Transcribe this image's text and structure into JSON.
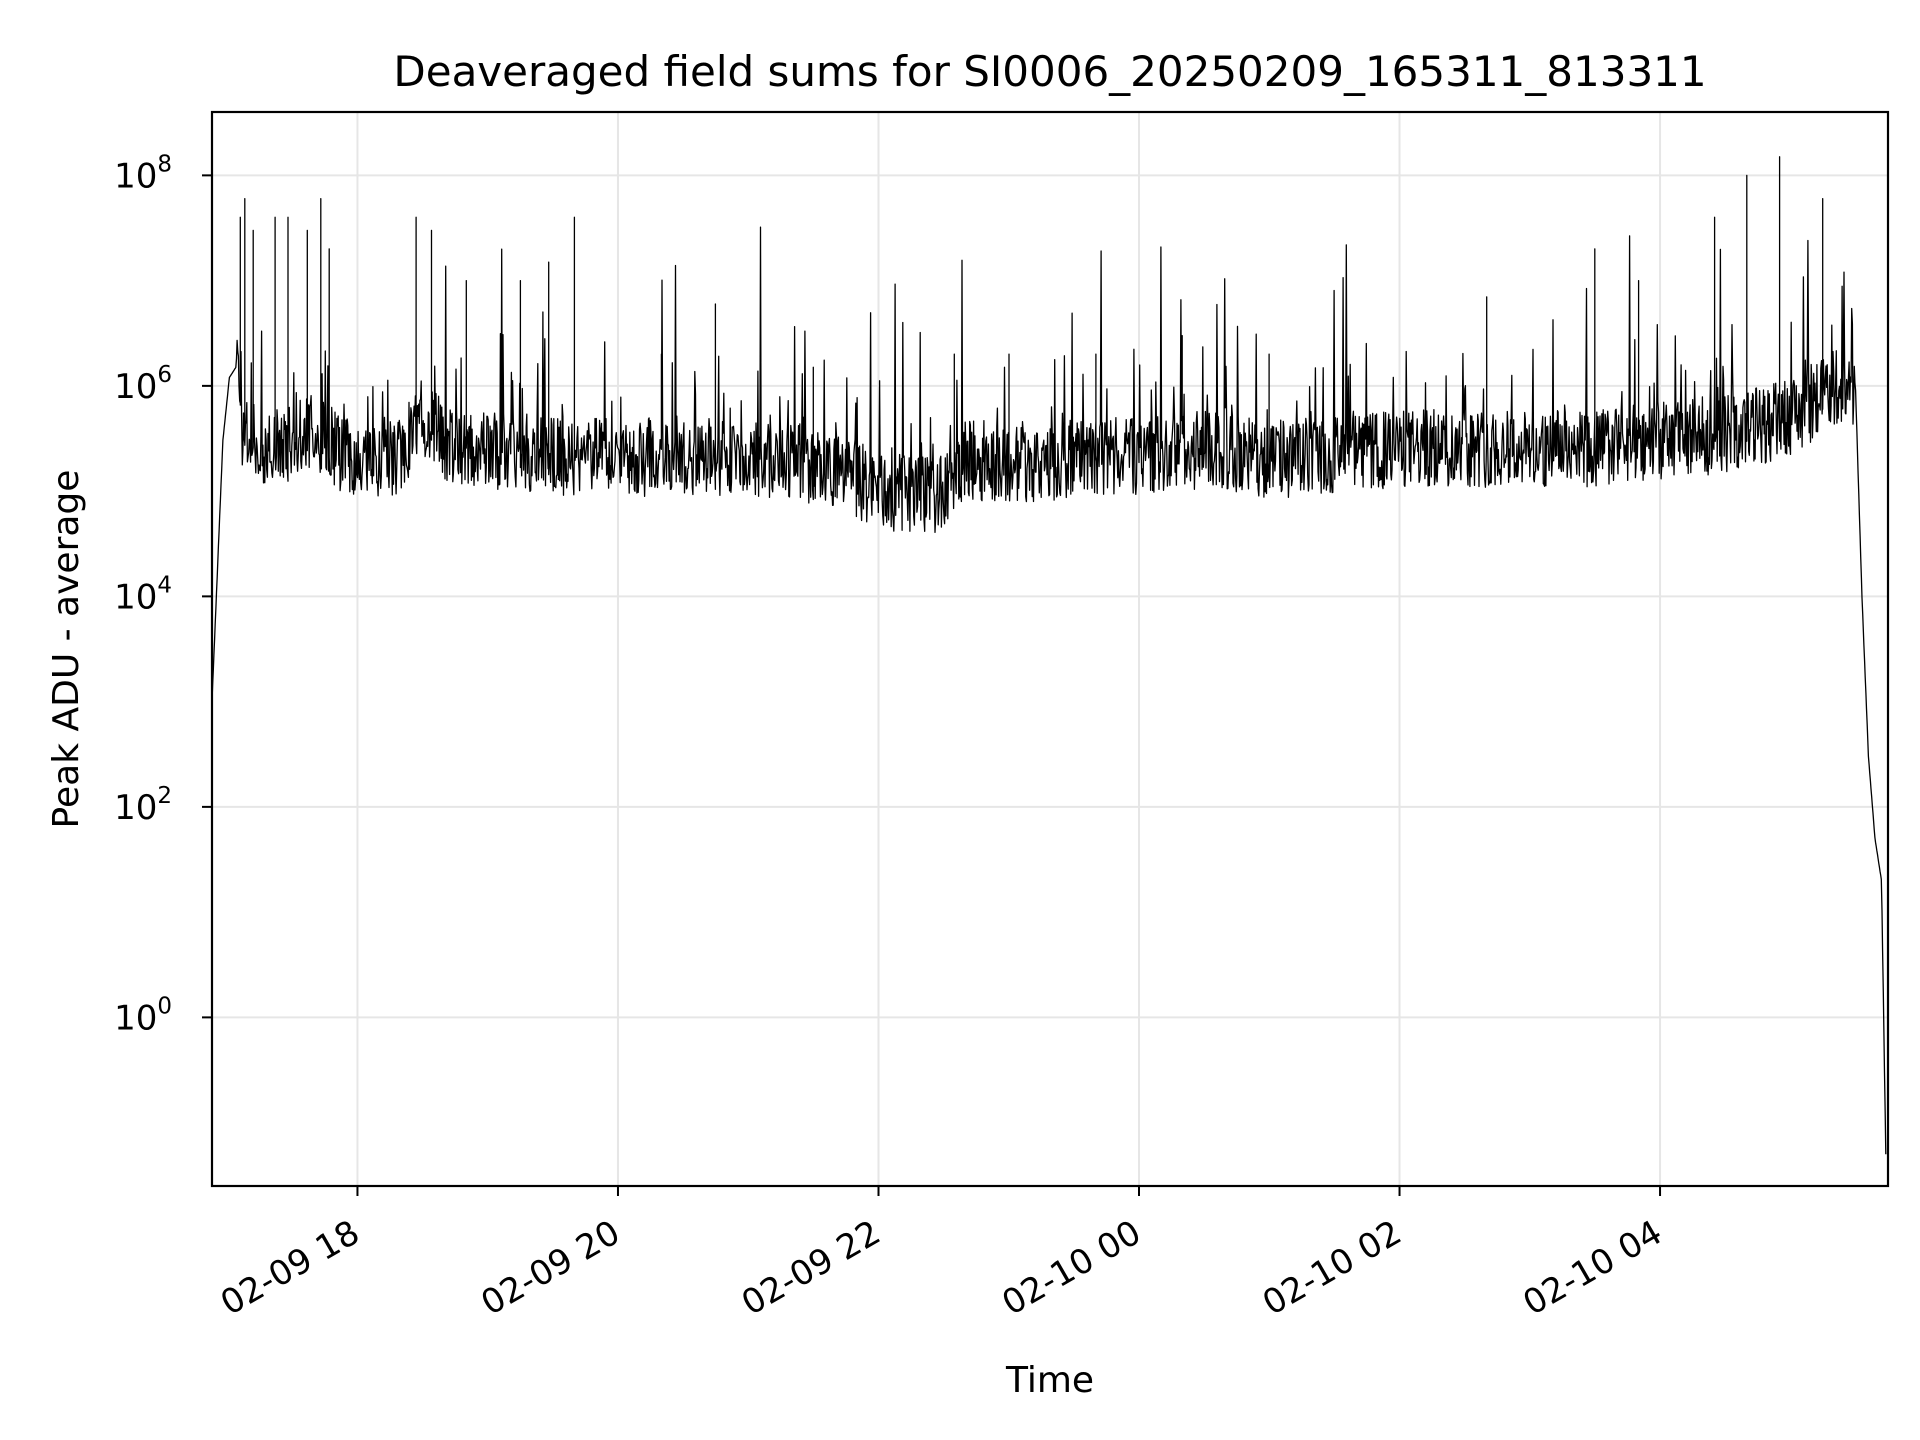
{
  "chart_data": {
    "type": "line",
    "title": "Deaveraged field sums for SI0006_20250209_165311_813311",
    "xlabel": "Time",
    "ylabel": "Peak ADU - average",
    "yscale": "log",
    "xlim": [
      "2025-02-09 16:53",
      "2025-02-10 05:45"
    ],
    "ylim": [
      0.025,
      400000000
    ],
    "grid": true,
    "line_color": "#000000",
    "grid_color": "#e6e6e6",
    "x_ticks": [
      "02-09 18",
      "02-09 20",
      "02-09 22",
      "02-10 00",
      "02-10 02",
      "02-10 04"
    ],
    "x_tick_values": [
      "2025-02-09 18:00",
      "2025-02-09 20:00",
      "2025-02-09 22:00",
      "2025-02-10 00:00",
      "2025-02-10 02:00",
      "2025-02-10 04:00"
    ],
    "y_ticks": [
      {
        "base": "10",
        "exp": "0",
        "value": 1
      },
      {
        "base": "10",
        "exp": "2",
        "value": 100
      },
      {
        "base": "10",
        "exp": "4",
        "value": 10000
      },
      {
        "base": "10",
        "exp": "6",
        "value": 1000000
      },
      {
        "base": "10",
        "exp": "8",
        "value": 100000000
      }
    ],
    "series": [
      {
        "x": [
          "2025-02-09 16:53",
          "2025-02-09 16:55",
          "2025-02-09 16:58",
          "2025-02-09 17:01",
          "2025-02-09 17:04",
          "2025-02-09 17:07",
          "2025-02-09 17:10",
          "2025-02-09 17:20",
          "2025-02-09 17:30",
          "2025-02-09 17:40",
          "2025-02-09 17:50",
          "2025-02-09 18:00",
          "2025-02-09 18:20",
          "2025-02-09 18:30",
          "2025-02-09 18:40",
          "2025-02-09 19:00",
          "2025-02-09 19:30",
          "2025-02-09 20:00",
          "2025-02-09 20:30",
          "2025-02-09 21:00",
          "2025-02-09 21:30",
          "2025-02-09 22:00",
          "2025-02-09 22:30",
          "2025-02-09 22:40",
          "2025-02-09 23:00",
          "2025-02-09 23:30",
          "2025-02-10 00:00",
          "2025-02-10 00:30",
          "2025-02-10 01:00",
          "2025-02-10 01:30",
          "2025-02-10 02:00",
          "2025-02-10 02:30",
          "2025-02-10 03:00",
          "2025-02-10 03:30",
          "2025-02-10 04:00",
          "2025-02-10 04:30",
          "2025-02-10 05:00",
          "2025-02-10 05:20",
          "2025-02-10 05:30",
          "2025-02-10 05:33",
          "2025-02-10 05:36",
          "2025-02-10 05:39",
          "2025-02-10 05:42",
          "2025-02-10 05:44"
        ],
        "y": [
          1000,
          10000,
          300000,
          1200000,
          1500000,
          400000,
          300000,
          250000,
          300000,
          350000,
          250000,
          200000,
          220000,
          500000,
          300000,
          250000,
          220000,
          200000,
          220000,
          200000,
          180000,
          100000,
          90000,
          200000,
          180000,
          200000,
          220000,
          250000,
          200000,
          220000,
          250000,
          260000,
          250000,
          260000,
          300000,
          350000,
          500000,
          1000000,
          1000000,
          10000,
          300,
          50,
          20,
          0.05
        ]
      }
    ],
    "spikes": [
      {
        "x": "2025-02-09 17:06",
        "y": 40000000
      },
      {
        "x": "2025-02-09 17:08",
        "y": 60000000
      },
      {
        "x": "2025-02-09 17:12",
        "y": 30000000
      },
      {
        "x": "2025-02-09 17:22",
        "y": 40000000
      },
      {
        "x": "2025-02-09 17:28",
        "y": 40000000
      },
      {
        "x": "2025-02-09 17:37",
        "y": 30000000
      },
      {
        "x": "2025-02-09 17:43",
        "y": 60000000
      },
      {
        "x": "2025-02-09 17:47",
        "y": 20000000
      },
      {
        "x": "2025-02-09 18:27",
        "y": 40000000
      },
      {
        "x": "2025-02-09 18:34",
        "y": 30000000
      },
      {
        "x": "2025-02-09 18:50",
        "y": 10000000
      },
      {
        "x": "2025-02-09 19:15",
        "y": 10000000
      },
      {
        "x": "2025-02-09 19:28",
        "y": 15000000
      },
      {
        "x": "2025-02-09 19:40",
        "y": 40000000
      },
      {
        "x": "2025-02-09 20:20",
        "y": 2000000
      },
      {
        "x": "2025-02-09 20:45",
        "y": 6000000
      },
      {
        "x": "2025-02-09 21:30",
        "y": 1500000
      },
      {
        "x": "2025-02-09 22:35",
        "y": 2000000
      },
      {
        "x": "2025-02-09 23:00",
        "y": 2000000
      },
      {
        "x": "2025-02-09 23:40",
        "y": 2000000
      },
      {
        "x": "2025-02-10 00:20",
        "y": 3000000
      },
      {
        "x": "2025-02-10 01:00",
        "y": 2000000
      },
      {
        "x": "2025-02-10 02:40",
        "y": 7000000
      },
      {
        "x": "2025-02-10 03:30",
        "y": 20000000
      },
      {
        "x": "2025-02-10 03:50",
        "y": 10000000
      },
      {
        "x": "2025-02-10 04:25",
        "y": 40000000
      },
      {
        "x": "2025-02-10 04:40",
        "y": 100000000
      },
      {
        "x": "2025-02-10 04:55",
        "y": 150000000
      },
      {
        "x": "2025-02-10 05:15",
        "y": 60000000
      }
    ]
  }
}
